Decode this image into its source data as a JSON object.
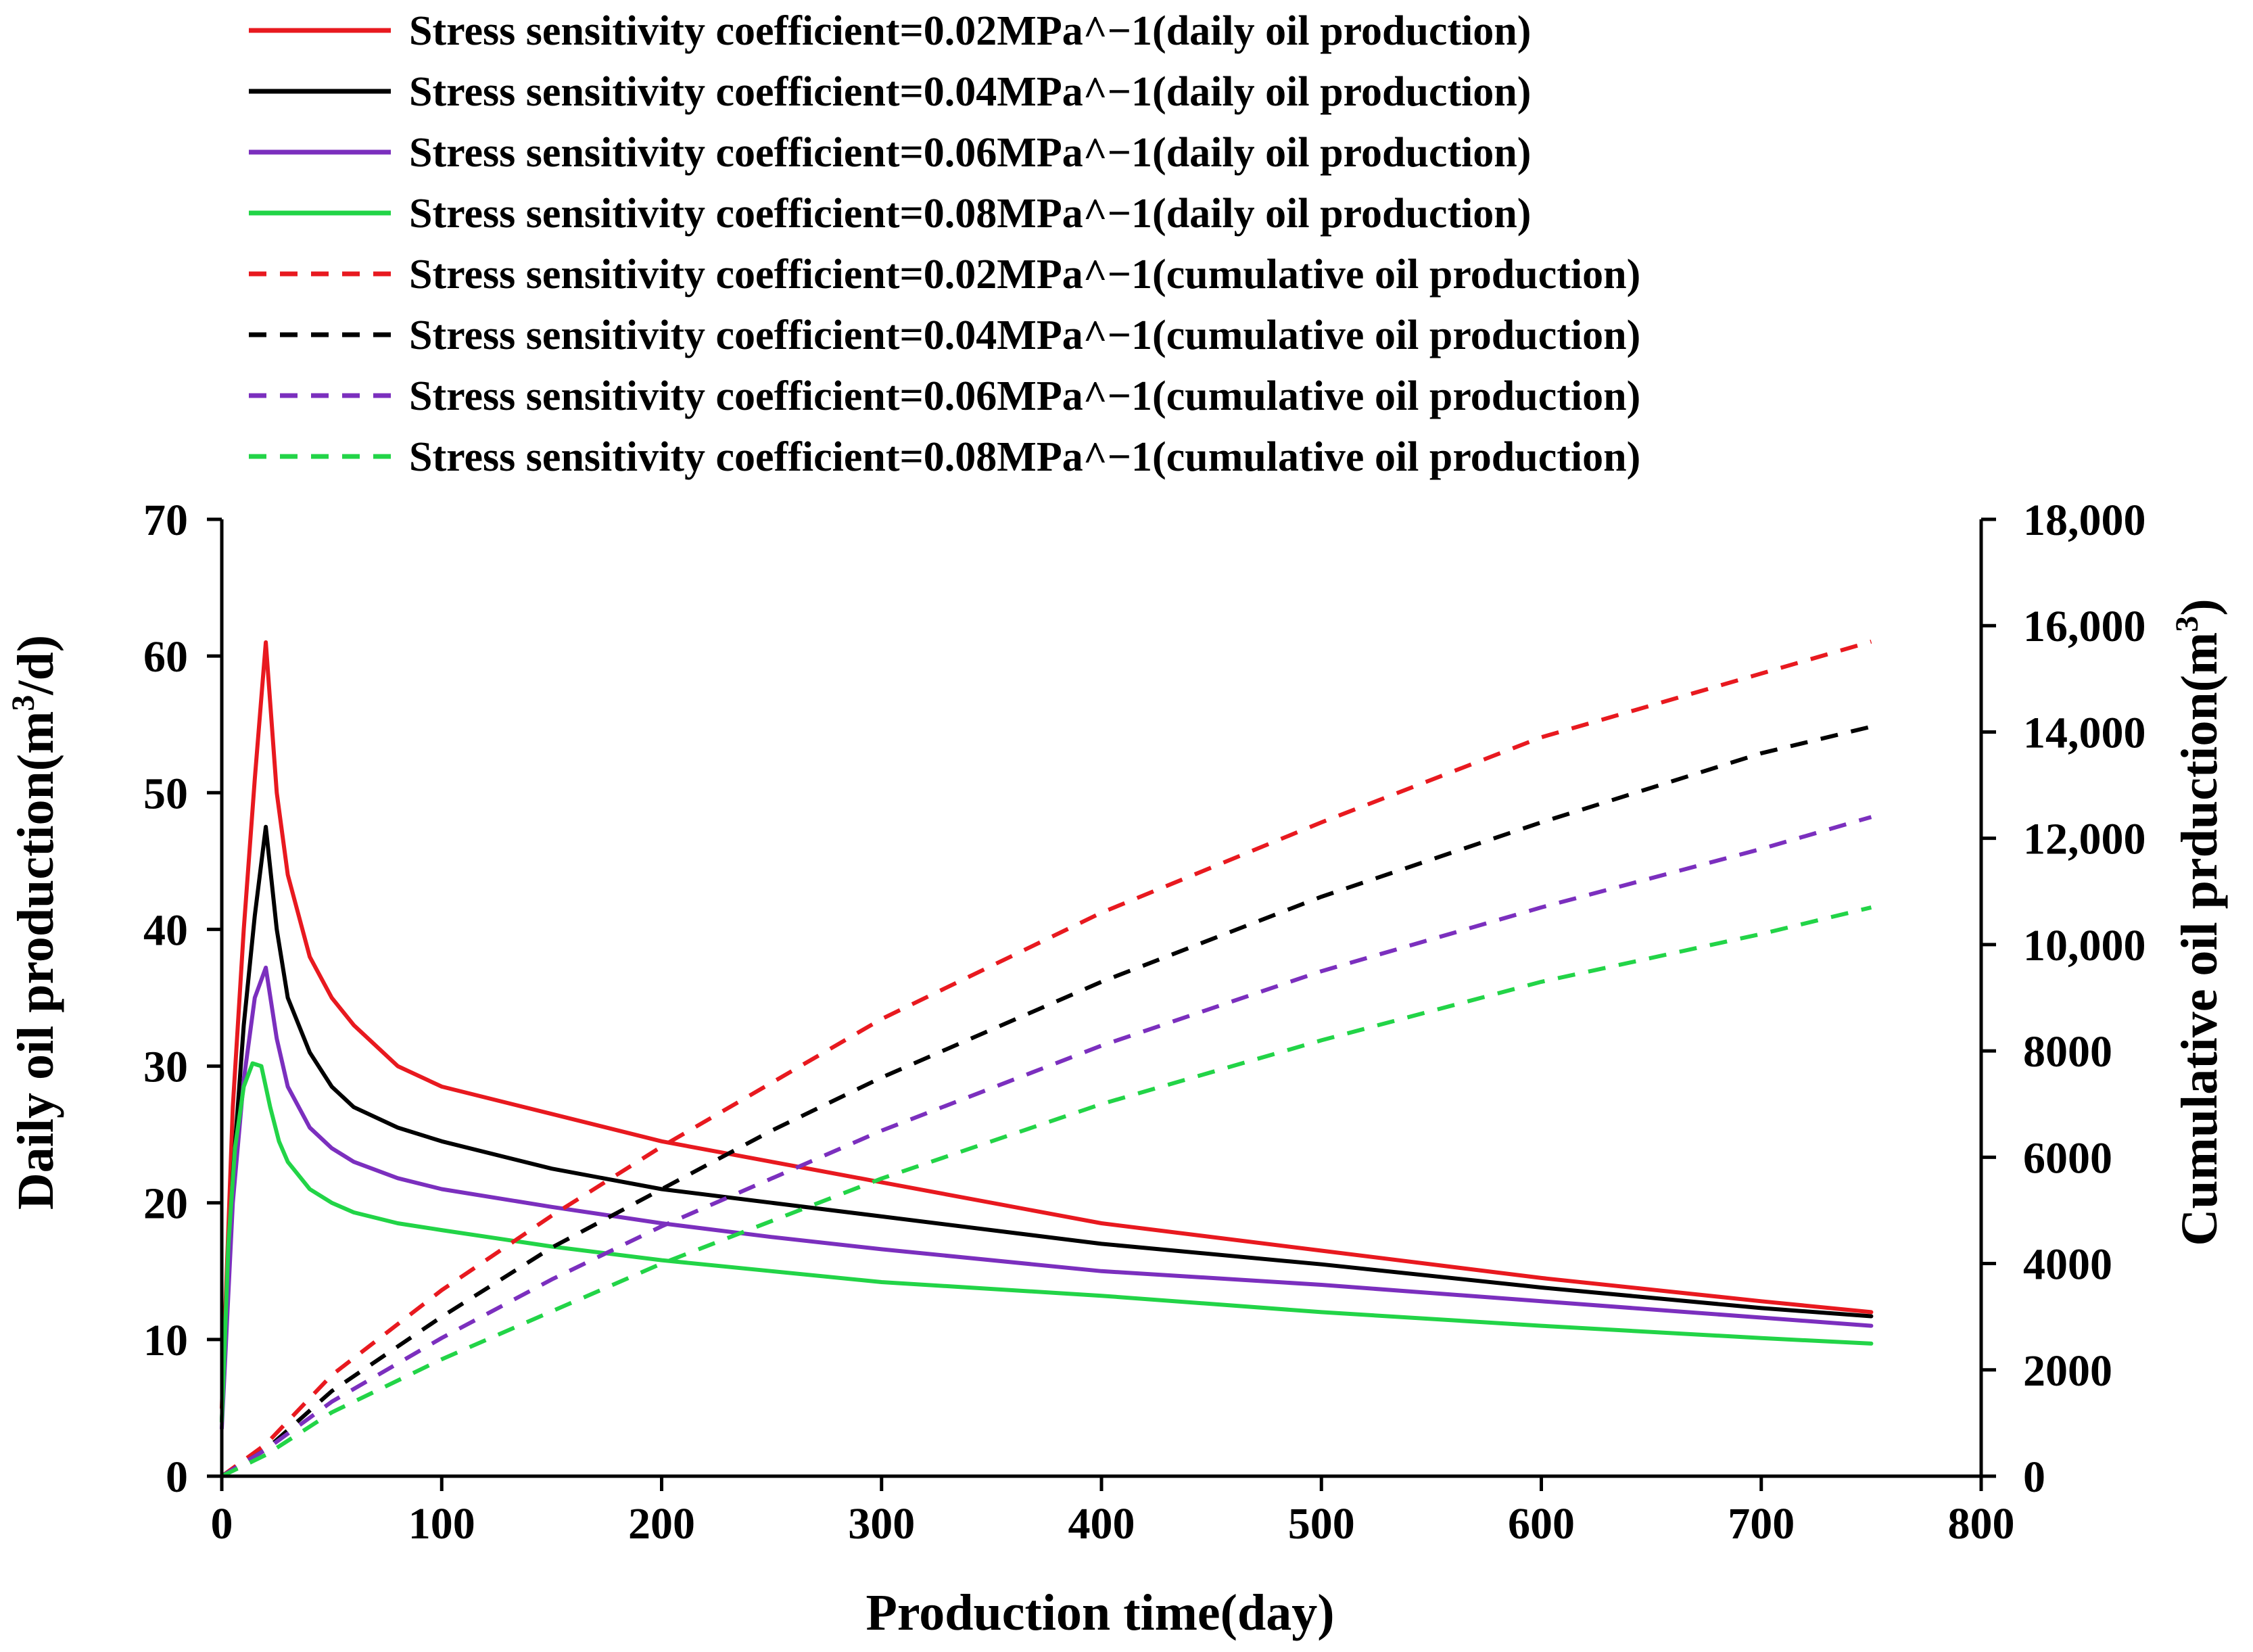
{
  "chart_data": {
    "type": "line",
    "x_axis": {
      "label": "Production time(day)",
      "range": [
        0,
        800
      ],
      "ticks": [
        0,
        100,
        200,
        300,
        400,
        500,
        600,
        700,
        800
      ]
    },
    "y_axis_left": {
      "label_main": "Daily oil production(m",
      "label_sup": "3",
      "label_tail": "/d)",
      "range": [
        0,
        70
      ],
      "ticks": [
        0,
        10,
        20,
        30,
        40,
        50,
        60,
        70
      ]
    },
    "y_axis_right": {
      "label_main": "Cumulative oil prduction(m",
      "label_sup": "3",
      "label_tail": ")",
      "range": [
        0,
        18000
      ],
      "ticks": [
        0,
        2000,
        4000,
        6000,
        8000,
        10000,
        12000,
        14000,
        16000,
        18000
      ],
      "tick_labels": [
        "0",
        "2000",
        "4000",
        "6000",
        "8000",
        "10,000",
        "12,000",
        "14,000",
        "16,000",
        "18,000"
      ]
    },
    "legend": [
      "Stress sensitivity coefficient=0.02MPa^−1(daily oil production)",
      "Stress sensitivity coefficient=0.04MPa^−1(daily oil production)",
      "Stress sensitivity coefficient=0.06MPa^−1(daily oil production)",
      "Stress sensitivity coefficient=0.08MPa^−1(daily oil production)",
      "Stress sensitivity coefficient=0.02MPa^−1(cumulative oil production)",
      "Stress sensitivity coefficient=0.04MPa^−1(cumulative oil production)",
      "Stress sensitivity coefficient=0.06MPa^−1(cumulative oil production)",
      "Stress sensitivity coefficient=0.08MPa^−1(cumulative oil production)"
    ],
    "series": [
      {
        "name": "Stress sensitivity coefficient=0.02MPa^−1(daily oil production)",
        "axis": "left",
        "color": "#e8191f",
        "dash": false,
        "x": [
          0,
          5,
          10,
          15,
          20,
          25,
          30,
          40,
          50,
          60,
          80,
          100,
          150,
          200,
          250,
          300,
          400,
          500,
          600,
          700,
          750
        ],
        "y": [
          5,
          27,
          40,
          51,
          61,
          50,
          44,
          38,
          35,
          33,
          30,
          28.5,
          26.5,
          24.5,
          23,
          21.5,
          18.5,
          16.5,
          14.5,
          12.8,
          12
        ]
      },
      {
        "name": "Stress sensitivity coefficient=0.04MPa^−1(daily oil production)",
        "axis": "left",
        "color": "#000000",
        "dash": false,
        "x": [
          0,
          5,
          10,
          15,
          20,
          25,
          30,
          40,
          50,
          60,
          80,
          100,
          150,
          200,
          250,
          300,
          400,
          500,
          600,
          700,
          750
        ],
        "y": [
          4,
          22,
          33,
          41,
          47.5,
          40,
          35,
          31,
          28.5,
          27,
          25.5,
          24.5,
          22.5,
          21,
          20,
          19,
          17,
          15.5,
          13.8,
          12.3,
          11.7
        ]
      },
      {
        "name": "Stress sensitivity coefficient=0.06MPa^−1(daily oil production)",
        "axis": "left",
        "color": "#7b2fbe",
        "dash": false,
        "x": [
          0,
          5,
          10,
          15,
          20,
          25,
          30,
          40,
          50,
          60,
          80,
          100,
          150,
          200,
          250,
          300,
          400,
          500,
          600,
          700,
          750
        ],
        "y": [
          3.5,
          20,
          29,
          35,
          37.2,
          32,
          28.5,
          25.5,
          24,
          23,
          21.8,
          21,
          19.7,
          18.5,
          17.5,
          16.6,
          15,
          14,
          12.8,
          11.6,
          11
        ]
      },
      {
        "name": "Stress sensitivity coefficient=0.08MPa^−1(daily oil production)",
        "axis": "left",
        "color": "#22d447",
        "dash": false,
        "x": [
          0,
          3,
          6,
          10,
          14,
          18,
          22,
          26,
          30,
          40,
          50,
          60,
          80,
          100,
          150,
          200,
          250,
          300,
          400,
          500,
          600,
          700,
          750
        ],
        "y": [
          4,
          17,
          24,
          28.5,
          30.2,
          30,
          27,
          24.5,
          23,
          21,
          20,
          19.3,
          18.5,
          18,
          16.8,
          15.8,
          15,
          14.2,
          13.2,
          12,
          11,
          10.1,
          9.7
        ]
      },
      {
        "name": "Stress sensitivity coefficient=0.02MPa^−1(cumulative oil production)",
        "axis": "right",
        "color": "#e8191f",
        "dash": true,
        "x": [
          0,
          20,
          50,
          100,
          150,
          200,
          250,
          300,
          400,
          500,
          600,
          700,
          750
        ],
        "y": [
          0,
          600,
          1900,
          3500,
          4900,
          6200,
          7400,
          8600,
          10600,
          12300,
          13900,
          15100,
          15700
        ]
      },
      {
        "name": "Stress sensitivity coefficient=0.04MPa^−1(cumulative oil production)",
        "axis": "right",
        "color": "#000000",
        "dash": true,
        "x": [
          0,
          20,
          50,
          100,
          150,
          200,
          250,
          300,
          400,
          500,
          600,
          700,
          750
        ],
        "y": [
          0,
          500,
          1600,
          3000,
          4300,
          5400,
          6500,
          7500,
          9300,
          10900,
          12300,
          13600,
          14100
        ]
      },
      {
        "name": "Stress sensitivity coefficient=0.06MPa^−1(cumulative oil production)",
        "axis": "right",
        "color": "#7b2fbe",
        "dash": true,
        "x": [
          0,
          20,
          50,
          100,
          150,
          200,
          250,
          300,
          400,
          500,
          600,
          700,
          750
        ],
        "y": [
          0,
          500,
          1400,
          2600,
          3700,
          4700,
          5600,
          6500,
          8100,
          9500,
          10700,
          11800,
          12400
        ]
      },
      {
        "name": "Stress sensitivity coefficient=0.08MPa^−1(cumulative oil production)",
        "axis": "right",
        "color": "#22d447",
        "dash": true,
        "x": [
          0,
          20,
          50,
          100,
          150,
          200,
          250,
          300,
          400,
          500,
          600,
          700,
          750
        ],
        "y": [
          0,
          400,
          1200,
          2200,
          3100,
          4000,
          4800,
          5600,
          7000,
          8200,
          9300,
          10200,
          10700
        ]
      }
    ]
  }
}
